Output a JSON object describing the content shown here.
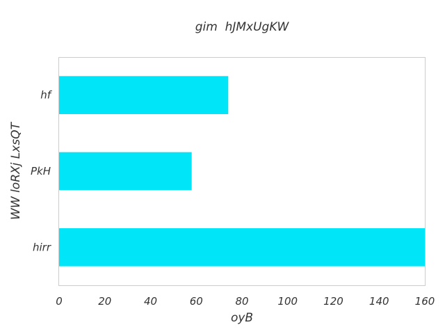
{
  "chart_data": {
    "type": "bar",
    "orientation": "horizontal",
    "title": "gim  hJMxUgKW",
    "xlabel": "oyB",
    "ylabel": "WW loRXj LxsQT",
    "categories": [
      "hf",
      "PkH",
      "hirr"
    ],
    "series": [
      {
        "values": [
          74,
          58,
          160
        ]
      }
    ],
    "xlim": [
      0,
      160
    ],
    "xticks": [
      "0",
      "20",
      "40",
      "60",
      "80",
      "100",
      "120",
      "140",
      "160"
    ],
    "grid": false,
    "bar_color": "#00e5f8",
    "frame_color": "#cccccc",
    "text_color": "#333333"
  }
}
